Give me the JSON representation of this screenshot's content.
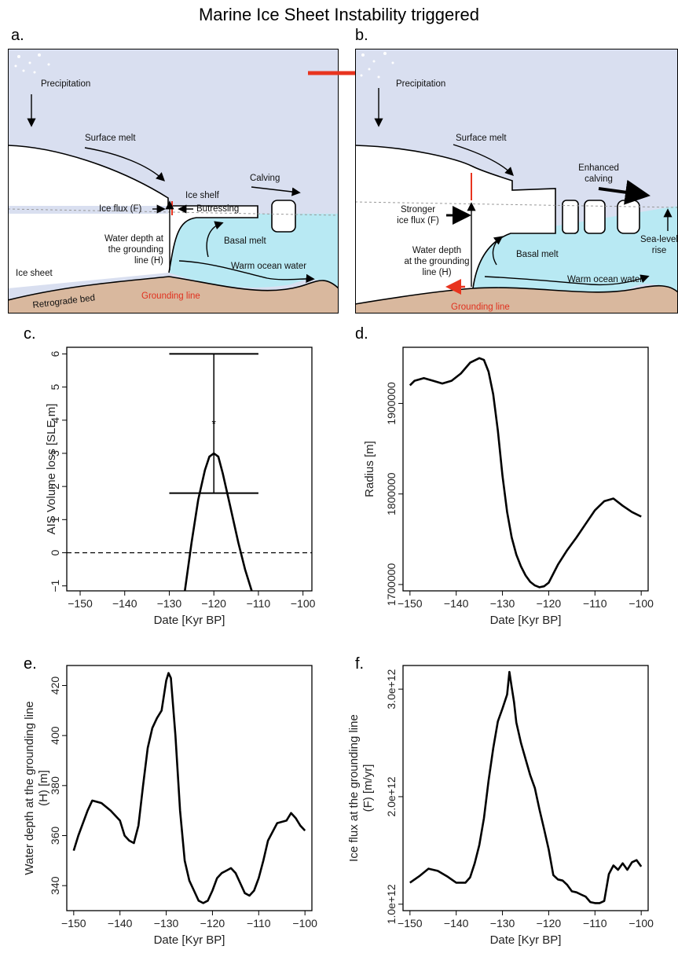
{
  "figure_title": "Marine Ice Sheet Instability triggered",
  "colors": {
    "sky": "#d9dff0",
    "ocean": "#b8e9f3",
    "bed": "#d9b89e",
    "arrow_red": "#e8341f",
    "line": "#000000"
  },
  "diagram_a": {
    "panel_label": "a.",
    "labels": {
      "precipitation": "Precipitation",
      "surface_melt": "Surface melt",
      "calving": "Calving",
      "ice_shelf": "Ice shelf",
      "ice_flux": "Ice flux (F)",
      "butressing": "Butressing",
      "water_depth_1": "Water depth at",
      "water_depth_2": "the grounding",
      "water_depth_3": "line (H)",
      "basal_melt": "Basal melt",
      "ice_sheet": "Ice sheet",
      "warm_ocean": "Warm ocean water",
      "grounding_line": "Grounding line",
      "retrograde_bed": "Retrograde bed"
    }
  },
  "diagram_b": {
    "panel_label": "b.",
    "labels": {
      "precipitation": "Precipitation",
      "surface_melt": "Surface melt",
      "enhanced_1": "Enhanced",
      "enhanced_2": "calving",
      "stronger_1": "Stronger",
      "stronger_2": "ice flux (F)",
      "water_depth_1": "Water depth",
      "water_depth_2": "at the grounding",
      "water_depth_3": "line (H)",
      "basal_melt": "Basal melt",
      "warm_ocean": "Warm ocean water",
      "sea_level_1": "Sea-level",
      "sea_level_2": "rise",
      "grounding_line": "Grounding line"
    }
  },
  "chart_data": [
    {
      "panel_label": "c.",
      "type": "line",
      "xlabel": "Date [Kyr BP]",
      "ylabel": "AIS Volume loss [SLE m]",
      "xlim": [
        -153,
        -98
      ],
      "ylim": [
        -1.15,
        6.2
      ],
      "xticks": [
        -150,
        -140,
        -130,
        -120,
        -110,
        -100
      ],
      "yticks": [
        -1,
        0,
        1,
        2,
        3,
        4,
        5,
        6
      ],
      "series": [
        {
          "x": [
            -126.5,
            -125,
            -123.5,
            -122,
            -121,
            -120,
            -119,
            -118,
            -116.5,
            -114.5,
            -113,
            -111.5
          ],
          "y": [
            -1.15,
            0.3,
            1.6,
            2.5,
            2.9,
            3.0,
            2.9,
            2.4,
            1.5,
            0.3,
            -0.5,
            -1.15
          ]
        }
      ],
      "reference_line": {
        "y": 0,
        "style": "dashed"
      },
      "error_bar": {
        "x": -120,
        "center": 3.9,
        "upper": 6.0,
        "lower": 1.8,
        "cap_from": -130,
        "cap_to": -110
      }
    },
    {
      "panel_label": "d.",
      "type": "line",
      "xlabel": "Date [Kyr BP]",
      "ylabel": "Radius [m]",
      "xlim": [
        -151.5,
        -98.5
      ],
      "ylim": [
        1693000,
        1962000
      ],
      "xticks": [
        -150,
        -140,
        -130,
        -120,
        -110,
        -100
      ],
      "yticks": [
        1700000,
        1800000,
        1900000
      ],
      "series": [
        {
          "x": [
            -150,
            -149,
            -147,
            -145,
            -143,
            -141,
            -139,
            -137,
            -135,
            -134,
            -133,
            -132,
            -131,
            -130,
            -129,
            -128,
            -127,
            -126,
            -125,
            -124,
            -123,
            -122,
            -121,
            -120,
            -119,
            -118,
            -116,
            -114,
            -112,
            -110,
            -108,
            -106,
            -104,
            -102,
            -100
          ],
          "y": [
            1920000,
            1925000,
            1928000,
            1925000,
            1922000,
            1925000,
            1933000,
            1945000,
            1950000,
            1948000,
            1935000,
            1910000,
            1870000,
            1820000,
            1780000,
            1752000,
            1733000,
            1720000,
            1710000,
            1703000,
            1699000,
            1697000,
            1698000,
            1702000,
            1712000,
            1722000,
            1738000,
            1752000,
            1767000,
            1782000,
            1792000,
            1795000,
            1787000,
            1780000,
            1775000
          ]
        }
      ]
    },
    {
      "panel_label": "e.",
      "type": "line",
      "xlabel": "Date [Kyr BP]",
      "ylabel": "Water depth at the grounding line (H) [m]",
      "xlim": [
        -151.5,
        -98.5
      ],
      "ylim": [
        330,
        428
      ],
      "xticks": [
        -150,
        -140,
        -130,
        -120,
        -110,
        -100
      ],
      "yticks": [
        340,
        360,
        380,
        400,
        420
      ],
      "series": [
        {
          "x": [
            -150,
            -149,
            -147,
            -146,
            -144,
            -142,
            -140,
            -139,
            -138,
            -137,
            -136,
            -135,
            -134,
            -133,
            -132,
            -131,
            -130,
            -129.5,
            -129,
            -128,
            -127,
            -126,
            -125,
            -124,
            -123,
            -122,
            -121,
            -120,
            -119,
            -118,
            -117,
            -116,
            -115,
            -114,
            -113,
            -112,
            -111,
            -110,
            -109,
            -108,
            -106,
            -104,
            -103,
            -102,
            -101,
            -100
          ],
          "y": [
            354,
            360,
            370,
            374,
            373,
            370,
            366,
            360,
            358,
            357,
            364,
            380,
            395,
            403,
            407,
            410,
            422,
            425,
            423,
            400,
            370,
            350,
            342,
            338,
            334,
            333,
            334,
            338,
            343,
            345,
            346,
            347,
            345,
            341,
            337,
            336,
            338,
            343,
            350,
            358,
            365,
            366,
            369,
            367,
            364,
            362
          ]
        }
      ]
    },
    {
      "panel_label": "f.",
      "type": "line",
      "xlabel": "Date [Kyr BP]",
      "ylabel": "Ice flux at the grounding line (F) [m/yr]",
      "xlim": [
        -151.5,
        -98.5
      ],
      "ylim": [
        940000000000,
        3220000000000
      ],
      "xticks": [
        -150,
        -140,
        -130,
        -120,
        -110,
        -100
      ],
      "yticks": [
        1000000000000,
        2000000000000,
        3000000000000
      ],
      "ytick_labels": [
        "1.0e+12",
        "2.0e+12",
        "3.0e+12"
      ],
      "series": [
        {
          "x": [
            -150,
            -148,
            -146,
            -144,
            -142,
            -140,
            -138,
            -137,
            -136,
            -135,
            -134,
            -133,
            -132,
            -131,
            -130,
            -129,
            -128.5,
            -128,
            -127.5,
            -127,
            -126,
            -125,
            -124,
            -123,
            -122,
            -121,
            -120,
            -119,
            -118,
            -117,
            -116,
            -115,
            -114,
            -113,
            -112,
            -111,
            -110,
            -109,
            -108,
            -107,
            -106,
            -105,
            -104,
            -103,
            -102,
            -101,
            -100
          ],
          "y": [
            1200000000000,
            1260000000000,
            1330000000000,
            1310000000000,
            1260000000000,
            1200000000000,
            1200000000000,
            1250000000000,
            1380000000000,
            1550000000000,
            1800000000000,
            2150000000000,
            2450000000000,
            2700000000000,
            2820000000000,
            2950000000000,
            3160000000000,
            3020000000000,
            2880000000000,
            2690000000000,
            2500000000000,
            2350000000000,
            2200000000000,
            2080000000000,
            1880000000000,
            1700000000000,
            1510000000000,
            1270000000000,
            1230000000000,
            1220000000000,
            1180000000000,
            1120000000000,
            1110000000000,
            1090000000000,
            1070000000000,
            1020000000000,
            1010000000000,
            1010000000000,
            1030000000000,
            1280000000000,
            1360000000000,
            1320000000000,
            1380000000000,
            1320000000000,
            1390000000000,
            1410000000000,
            1350000000000
          ]
        }
      ]
    }
  ]
}
